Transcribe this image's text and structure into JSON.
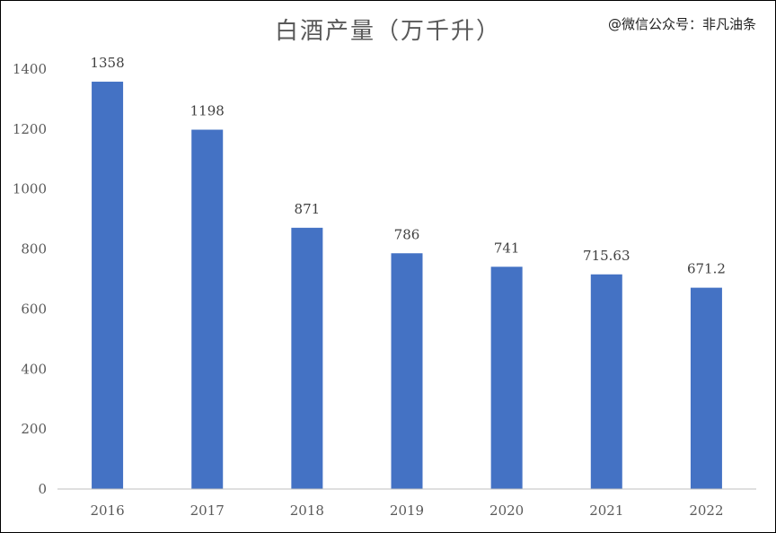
{
  "watermark": "@微信公众号：非凡油条",
  "chart_data": {
    "type": "bar",
    "title": "白酒产量（万千升）",
    "categories": [
      "2016",
      "2017",
      "2018",
      "2019",
      "2020",
      "2021",
      "2022"
    ],
    "values": [
      1358,
      1198,
      871,
      786,
      741,
      715.63,
      671.2
    ],
    "data_labels": [
      "1358",
      "1198",
      "871",
      "786",
      "741",
      "715.63",
      "671.2"
    ],
    "ylim": [
      0,
      1400
    ],
    "yticks": [
      0,
      200,
      400,
      600,
      800,
      1000,
      1200,
      1400
    ],
    "grid": false,
    "legend": "none",
    "bar_color": "#4472C4"
  }
}
